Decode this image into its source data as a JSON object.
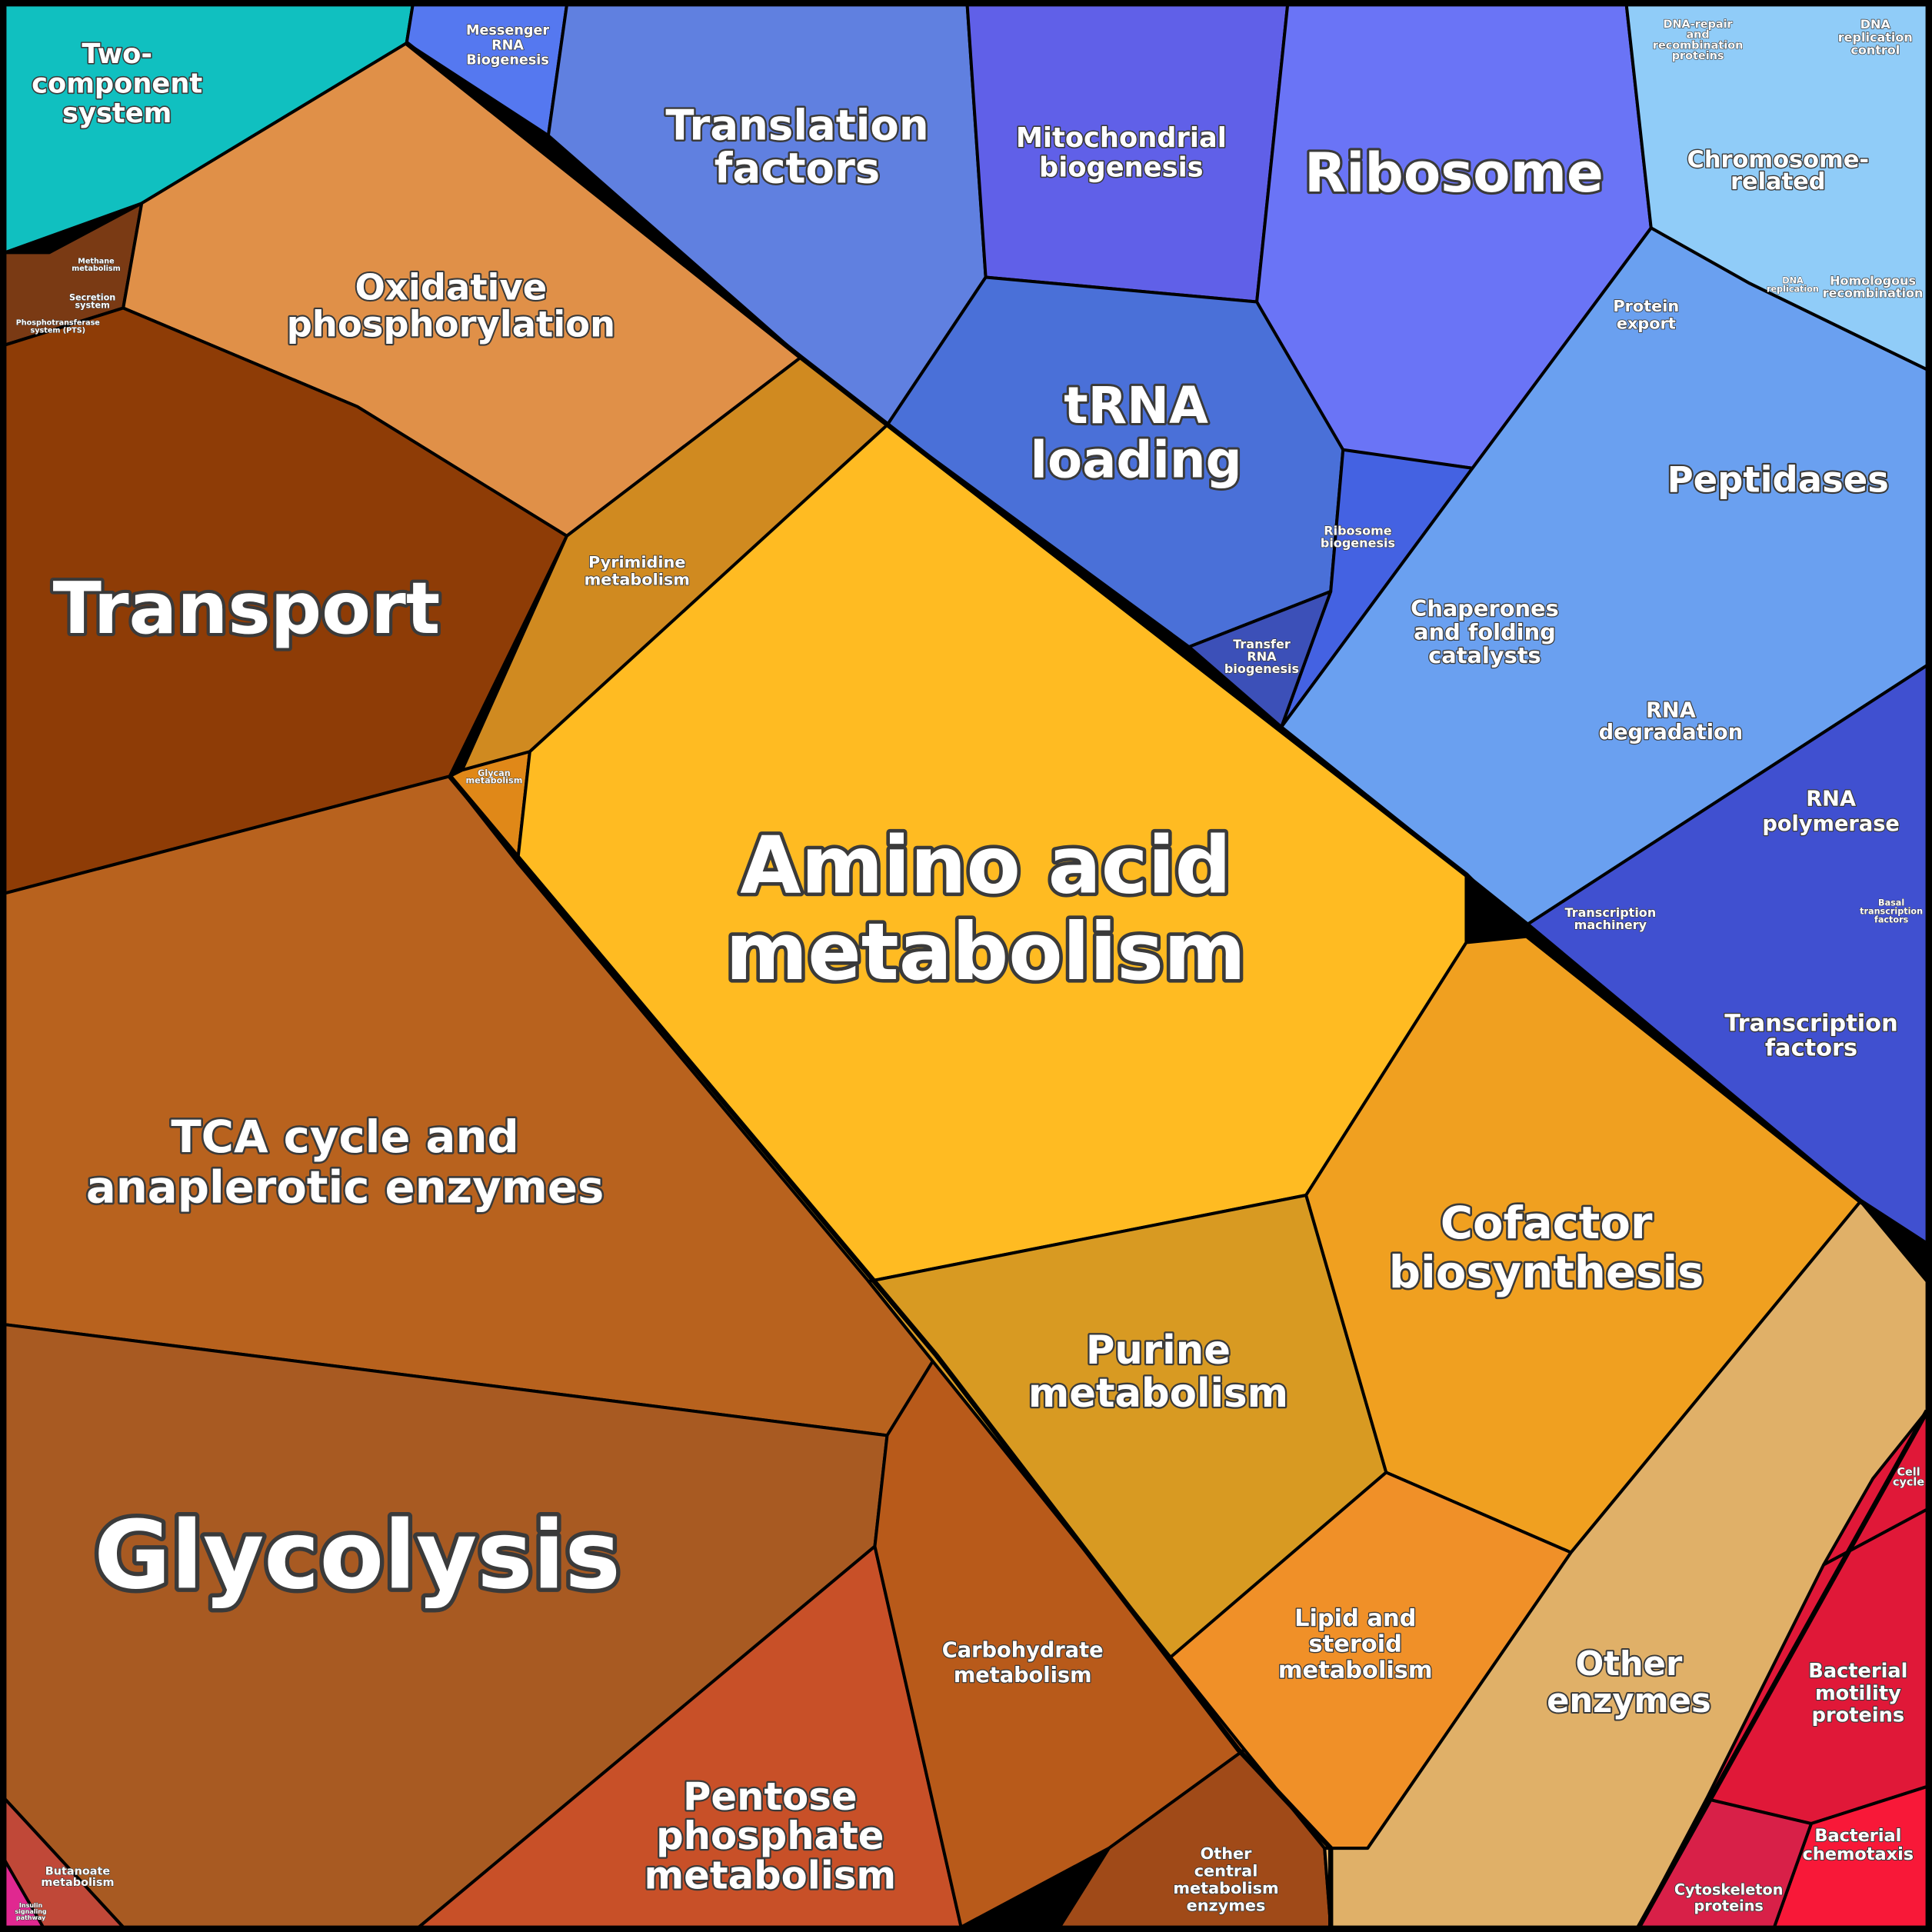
{
  "regions": [
    {
      "label": [
        "Two-",
        "component",
        "system"
      ]
    },
    {
      "label": [
        "Messenger",
        "RNA",
        "Biogenesis"
      ]
    },
    {
      "label": [
        "Translation",
        "factors"
      ]
    },
    {
      "label": [
        "Mitochondrial",
        "biogenesis"
      ]
    },
    {
      "label": [
        "Ribosome"
      ]
    },
    {
      "label": [
        "DNA-repair",
        "and",
        "recombination",
        "proteins"
      ]
    },
    {
      "label": [
        "DNA",
        "replication",
        "control"
      ]
    },
    {
      "label": [
        "Chromosome-",
        "related"
      ]
    },
    {
      "label": [
        "Protein",
        "export"
      ]
    },
    {
      "label": [
        "DNA",
        "replication"
      ]
    },
    {
      "label": [
        "Homologous",
        "recombination"
      ]
    },
    {
      "label": [
        "Oxidative",
        "phosphorylation"
      ]
    },
    {
      "label": [
        "tRNA",
        "loading"
      ]
    },
    {
      "label": [
        "Peptidases"
      ]
    },
    {
      "label": [
        "Transport"
      ]
    },
    {
      "label": [
        "Pyrimidine",
        "metabolism"
      ]
    },
    {
      "label": [
        "Ribosome",
        "biogenesis"
      ]
    },
    {
      "label": [
        "Chaperones",
        "and folding",
        "catalysts"
      ]
    },
    {
      "label": [
        "Transfer",
        "RNA",
        "biogenesis"
      ]
    },
    {
      "label": [
        "RNA",
        "degradation"
      ]
    },
    {
      "label": [
        "Glycan",
        "metabolism"
      ]
    },
    {
      "label": [
        "RNA",
        "polymerase"
      ]
    },
    {
      "label": [
        "Amino acid",
        "metabolism"
      ]
    },
    {
      "label": [
        "Transcription",
        "machinery"
      ]
    },
    {
      "label": [
        "Basal",
        "transcription",
        "factors"
      ]
    },
    {
      "label": [
        "Transcription",
        "factors"
      ]
    },
    {
      "label": [
        "TCA cycle and",
        "anaplerotic enzymes"
      ]
    },
    {
      "label": [
        "Cofactor",
        "biosynthesis"
      ]
    },
    {
      "label": [
        "Purine",
        "metabolism"
      ]
    },
    {
      "label": [
        "Glycolysis"
      ]
    },
    {
      "label": [
        "Cell",
        "cycle"
      ]
    },
    {
      "label": [
        "Lipid and",
        "steroid",
        "metabolism"
      ]
    },
    {
      "label": [
        "Carbohydrate",
        "metabolism"
      ]
    },
    {
      "label": [
        "Other",
        "enzymes"
      ]
    },
    {
      "label": [
        "Bacterial",
        "motility",
        "proteins"
      ]
    },
    {
      "label": [
        "Pentose",
        "phosphate",
        "metabolism"
      ]
    },
    {
      "label": [
        "Bacterial",
        "chemotaxis"
      ]
    },
    {
      "label": [
        "Other",
        "central",
        "metabolism",
        "enzymes"
      ]
    },
    {
      "label": [
        "Butanoate",
        "metabolism"
      ]
    },
    {
      "label": [
        "Cytoskeleton",
        "proteins"
      ]
    },
    {
      "label": [
        "Phosphotransferase",
        "system (PTS)"
      ]
    },
    {
      "label": [
        "Secretion",
        "system"
      ]
    },
    {
      "label": [
        "Methane",
        "metabolism"
      ]
    },
    {
      "label": [
        "Insulin",
        "signaling",
        "pathway"
      ]
    }
  ]
}
